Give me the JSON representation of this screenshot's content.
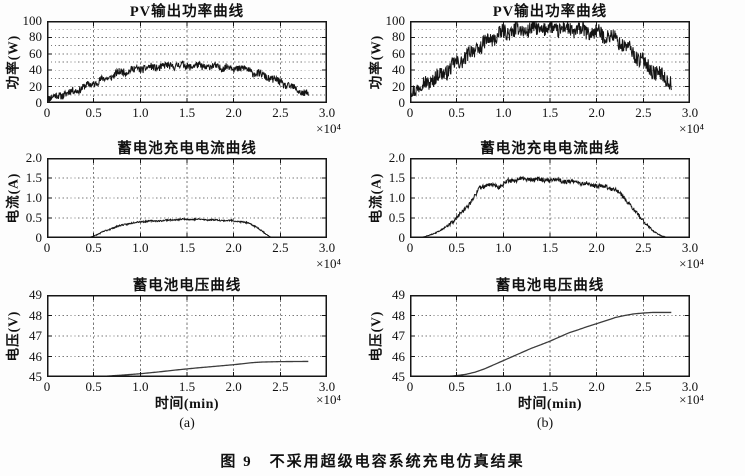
{
  "figure": {
    "caption": "图 9　不采用超级电容系统充电仿真结果",
    "sub_labels": [
      "(a)",
      "(b)"
    ]
  },
  "chart_data": [
    {
      "id": "pv-power-a",
      "type": "line",
      "title": "PV输出功率曲线",
      "xlabel": "",
      "ylabel": "功率(W)",
      "x_unit_exponent": "×10⁴",
      "xlim": [
        0,
        3.0
      ],
      "ylim": [
        0,
        100
      ],
      "x_ticks": [
        0,
        0.5,
        1.0,
        1.5,
        2.0,
        2.5,
        3.0
      ],
      "x_tick_labels": [
        "0",
        "0.5",
        "1.0",
        "1.5",
        "2.0",
        "2.5",
        "3.0"
      ],
      "y_ticks": [
        0,
        20,
        40,
        60,
        80,
        100
      ],
      "y_tick_labels": [
        "0",
        "20",
        "40",
        "60",
        "80",
        "100"
      ],
      "x_grid": [
        0.5,
        1.0,
        1.5,
        2.0,
        2.5
      ],
      "y_grid": [
        10,
        20,
        30,
        40,
        50,
        60,
        70,
        80,
        90
      ],
      "grid": true,
      "legend": "none",
      "series": [
        {
          "name": "PV输出功率",
          "noise_amplitude": 4.5,
          "noise_scaled": false,
          "x": [
            0,
            0.1,
            0.3,
            0.5,
            0.7,
            0.8,
            0.9,
            1.0,
            1.2,
            1.4,
            1.6,
            1.8,
            2.0,
            2.1,
            2.2,
            2.4,
            2.6,
            2.7,
            2.8
          ],
          "y": [
            6,
            8,
            15,
            24,
            33,
            38,
            40,
            42,
            44,
            46,
            45,
            44,
            43,
            42,
            38,
            30,
            20,
            15,
            10
          ]
        }
      ]
    },
    {
      "id": "pv-power-b",
      "type": "line",
      "title": "PV输出功率曲线",
      "xlabel": "",
      "ylabel": "功率(W)",
      "x_unit_exponent": "×10⁴",
      "xlim": [
        0,
        3.0
      ],
      "ylim": [
        0,
        100
      ],
      "x_ticks": [
        0,
        0.5,
        1.0,
        1.5,
        2.0,
        2.5,
        3.0
      ],
      "x_tick_labels": [
        "0",
        "0.5",
        "1.0",
        "1.5",
        "2.0",
        "2.5",
        "3.0"
      ],
      "y_ticks": [
        0,
        20,
        40,
        60,
        80,
        100
      ],
      "y_tick_labels": [
        "0",
        "20",
        "40",
        "60",
        "80",
        "100"
      ],
      "x_grid": [
        0.5,
        1.0,
        1.5,
        2.0,
        2.5
      ],
      "y_grid": [
        10,
        20,
        30,
        40,
        50,
        60,
        70,
        80,
        90
      ],
      "grid": true,
      "legend": "none",
      "series": [
        {
          "name": "PV输出功率",
          "noise_amplitude": 9,
          "noise_scaled": false,
          "x": [
            0,
            0.1,
            0.3,
            0.5,
            0.7,
            0.9,
            1.0,
            1.1,
            1.3,
            1.5,
            1.7,
            1.9,
            2.0,
            2.1,
            2.2,
            2.3,
            2.4,
            2.5,
            2.6,
            2.7,
            2.8
          ],
          "y": [
            16,
            20,
            32,
            48,
            65,
            80,
            85,
            88,
            90,
            91,
            90,
            87,
            85,
            83,
            78,
            70,
            60,
            50,
            40,
            32,
            26
          ]
        }
      ]
    },
    {
      "id": "battery-current-a",
      "type": "line",
      "title": "蓄电池充电电流曲线",
      "xlabel": "",
      "ylabel": "电流(A)",
      "x_unit_exponent": "×10⁴",
      "xlim": [
        0,
        3.0
      ],
      "ylim": [
        0,
        2.0
      ],
      "x_ticks": [
        0,
        0.5,
        1.0,
        1.5,
        2.0,
        2.5,
        3.0
      ],
      "x_tick_labels": [
        "0",
        "0.5",
        "1.0",
        "1.5",
        "2.0",
        "2.5",
        "3.0"
      ],
      "y_ticks": [
        0,
        0.5,
        1.0,
        1.5,
        2.0
      ],
      "y_tick_labels": [
        "0",
        "0.5",
        "1.0",
        "1.5",
        "2.0"
      ],
      "x_grid": [
        0.5,
        1.0,
        1.5,
        2.0,
        2.5
      ],
      "y_grid": [
        0.5,
        1.0,
        1.5
      ],
      "grid": true,
      "legend": "none",
      "series": [
        {
          "name": "蓄电池充电电流",
          "noise_amplitude": 0.018,
          "noise_scaled": true,
          "x": [
            0,
            0.4,
            0.45,
            0.5,
            0.6,
            0.7,
            0.8,
            0.9,
            1.0,
            1.2,
            1.4,
            1.5,
            1.7,
            1.9,
            2.0,
            2.1,
            2.15,
            2.2,
            2.25,
            2.3,
            2.35,
            2.4,
            2.45,
            2.8
          ],
          "y": [
            0,
            0,
            0.01,
            0.05,
            0.15,
            0.25,
            0.32,
            0.37,
            0.41,
            0.43,
            0.46,
            0.47,
            0.46,
            0.44,
            0.43,
            0.4,
            0.37,
            0.33,
            0.27,
            0.18,
            0.09,
            0.02,
            0,
            0
          ]
        }
      ]
    },
    {
      "id": "battery-current-b",
      "type": "line",
      "title": "蓄电池充电电流曲线",
      "xlabel": "",
      "ylabel": "电流(A)",
      "x_unit_exponent": "×10⁴",
      "xlim": [
        0,
        3.0
      ],
      "ylim": [
        0,
        2.0
      ],
      "x_ticks": [
        0,
        0.5,
        1.0,
        1.5,
        2.0,
        2.5,
        3.0
      ],
      "x_tick_labels": [
        "0",
        "0.5",
        "1.0",
        "1.5",
        "2.0",
        "2.5",
        "3.0"
      ],
      "y_ticks": [
        0,
        0.5,
        1.0,
        1.5,
        2.0
      ],
      "y_tick_labels": [
        "0",
        "0.5",
        "1.0",
        "1.5",
        "2.0"
      ],
      "x_grid": [
        0.5,
        1.0,
        1.5,
        2.0,
        2.5
      ],
      "y_grid": [
        0.5,
        1.0,
        1.5
      ],
      "grid": true,
      "legend": "none",
      "series": [
        {
          "name": "蓄电池充电电流",
          "noise_amplitude": 0.05,
          "noise_scaled": true,
          "x": [
            0,
            0.1,
            0.15,
            0.2,
            0.3,
            0.4,
            0.5,
            0.6,
            0.7,
            0.75,
            0.85,
            0.95,
            1.05,
            1.15,
            1.3,
            1.5,
            1.6,
            1.7,
            1.8,
            1.9,
            2.0,
            2.1,
            2.2,
            2.3,
            2.4,
            2.5,
            2.6,
            2.7,
            2.75,
            2.8
          ],
          "y": [
            0,
            0.01,
            0.03,
            0.06,
            0.16,
            0.3,
            0.5,
            0.75,
            1.05,
            1.28,
            1.33,
            1.28,
            1.42,
            1.46,
            1.47,
            1.44,
            1.45,
            1.4,
            1.4,
            1.35,
            1.31,
            1.28,
            1.2,
            1.0,
            0.7,
            0.44,
            0.18,
            0.05,
            0.02,
            0
          ]
        }
      ]
    },
    {
      "id": "battery-voltage-a",
      "type": "line",
      "title": "蓄电池电压曲线",
      "xlabel": "时间(min)",
      "ylabel": "电压(V)",
      "x_unit_exponent": "×10⁴",
      "xlim": [
        0,
        3.0
      ],
      "ylim": [
        45,
        49
      ],
      "x_ticks": [
        0,
        0.5,
        1.0,
        1.5,
        2.0,
        2.5,
        3.0
      ],
      "x_tick_labels": [
        "0",
        "0.5",
        "1.0",
        "1.5",
        "2.0",
        "2.5",
        "3.0"
      ],
      "y_ticks": [
        45,
        46,
        47,
        48,
        49
      ],
      "y_tick_labels": [
        "45",
        "46",
        "47",
        "48",
        "49"
      ],
      "x_grid": [
        0.5,
        1.0,
        1.5,
        2.0,
        2.5
      ],
      "y_grid": [
        46,
        47,
        48
      ],
      "grid": true,
      "legend": "none",
      "series": [
        {
          "name": "蓄电池电压",
          "noise_amplitude": 0,
          "noise_scaled": false,
          "x": [
            0.3,
            0.6,
            0.8,
            1.0,
            1.2,
            1.4,
            1.6,
            1.8,
            2.0,
            2.1,
            2.2,
            2.3,
            2.5,
            2.8
          ],
          "y": [
            45.0,
            45.03,
            45.09,
            45.16,
            45.25,
            45.35,
            45.44,
            45.52,
            45.6,
            45.65,
            45.7,
            45.73,
            45.75,
            45.76
          ]
        }
      ]
    },
    {
      "id": "battery-voltage-b",
      "type": "line",
      "title": "蓄电池电压曲线",
      "xlabel": "时间(min)",
      "ylabel": "电压(V)",
      "x_unit_exponent": "×10⁴",
      "xlim": [
        0,
        3.0
      ],
      "ylim": [
        45,
        49
      ],
      "x_ticks": [
        0,
        0.5,
        1.0,
        1.5,
        2.0,
        2.5,
        3.0
      ],
      "x_tick_labels": [
        "0",
        "0.5",
        "1.0",
        "1.5",
        "2.0",
        "2.5",
        "3.0"
      ],
      "y_ticks": [
        45,
        46,
        47,
        48,
        49
      ],
      "y_tick_labels": [
        "45",
        "46",
        "47",
        "48",
        "49"
      ],
      "x_grid": [
        0.5,
        1.0,
        1.5,
        2.0,
        2.5
      ],
      "y_grid": [
        46,
        47,
        48
      ],
      "grid": true,
      "legend": "none",
      "series": [
        {
          "name": "蓄电池电压",
          "noise_amplitude": 0,
          "noise_scaled": false,
          "x": [
            0.05,
            0.3,
            0.4,
            0.5,
            0.6,
            0.7,
            0.8,
            0.9,
            1.0,
            1.1,
            1.2,
            1.3,
            1.4,
            1.5,
            1.6,
            1.7,
            1.8,
            1.9,
            2.0,
            2.1,
            2.2,
            2.3,
            2.4,
            2.5,
            2.6,
            2.8
          ],
          "y": [
            45.0,
            45.01,
            45.03,
            45.07,
            45.13,
            45.24,
            45.4,
            45.6,
            45.8,
            46.0,
            46.2,
            46.4,
            46.57,
            46.75,
            46.95,
            47.15,
            47.3,
            47.46,
            47.6,
            47.75,
            47.9,
            48.0,
            48.08,
            48.12,
            48.15,
            48.15
          ]
        }
      ]
    }
  ],
  "style": {
    "curve_color": "#141414",
    "smooth_curve_color": "#3c3c3c",
    "grid_color": "#7a7a7a",
    "axis_color": "#161616",
    "plot_background": "#ffffff"
  }
}
